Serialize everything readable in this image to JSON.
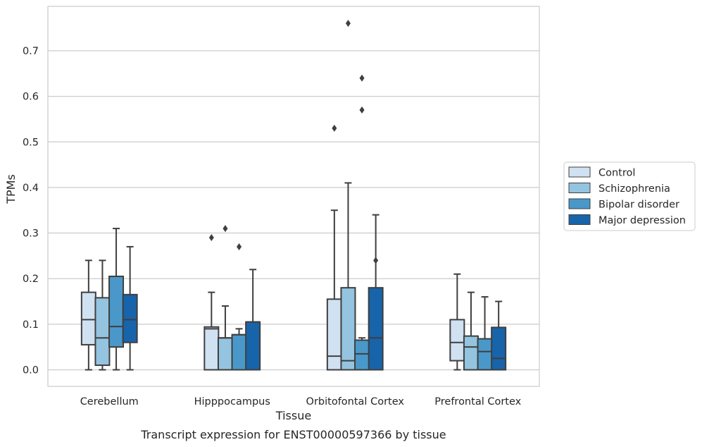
{
  "chart_data": {
    "type": "boxplot",
    "title": "Transcript expression for ENST00000597366 by tissue",
    "xlabel": "Tissue",
    "ylabel": "TPMs",
    "ylim": [
      -0.04,
      0.8
    ],
    "yticks": [
      "0.0",
      "0.1",
      "0.2",
      "0.3",
      "0.4",
      "0.5",
      "0.6",
      "0.7"
    ],
    "grid": "horizontal",
    "legend_position": "right",
    "categories": [
      "Cerebellum",
      "Hipppocampus",
      "Orbitofontal Cortex",
      "Prefrontal Cortex"
    ],
    "series": [
      {
        "name": "Control",
        "color": "#d0e1f2",
        "boxes": [
          {
            "whislo": 0.0,
            "q1": 0.055,
            "med": 0.11,
            "q3": 0.17,
            "whishi": 0.24,
            "fliers": []
          },
          {
            "whislo": 0.0,
            "q1": 0.0,
            "med": 0.09,
            "q3": 0.094,
            "whishi": 0.17,
            "fliers": [
              0.29
            ]
          },
          {
            "whislo": 0.0,
            "q1": 0.0,
            "med": 0.03,
            "q3": 0.155,
            "whishi": 0.35,
            "fliers": [
              0.53
            ]
          },
          {
            "whislo": 0.0,
            "q1": 0.02,
            "med": 0.06,
            "q3": 0.11,
            "whishi": 0.21,
            "fliers": []
          }
        ]
      },
      {
        "name": "Schizophrenia",
        "color": "#94c4df",
        "boxes": [
          {
            "whislo": 0.0,
            "q1": 0.01,
            "med": 0.07,
            "q3": 0.158,
            "whishi": 0.24,
            "fliers": []
          },
          {
            "whislo": 0.0,
            "q1": 0.0,
            "med": 0.07,
            "q3": 0.07,
            "whishi": 0.14,
            "fliers": [
              0.31
            ]
          },
          {
            "whislo": 0.0,
            "q1": 0.0,
            "med": 0.02,
            "q3": 0.18,
            "whishi": 0.41,
            "fliers": [
              0.76
            ]
          },
          {
            "whislo": 0.0,
            "q1": 0.0,
            "med": 0.05,
            "q3": 0.074,
            "whishi": 0.17,
            "fliers": []
          }
        ]
      },
      {
        "name": "Bipolar disorder",
        "color": "#4a98c9",
        "boxes": [
          {
            "whislo": 0.0,
            "q1": 0.05,
            "med": 0.095,
            "q3": 0.205,
            "whishi": 0.31,
            "fliers": []
          },
          {
            "whislo": 0.0,
            "q1": 0.0,
            "med": 0.077,
            "q3": 0.077,
            "whishi": 0.09,
            "fliers": [
              0.27
            ]
          },
          {
            "whislo": 0.0,
            "q1": 0.0,
            "med": 0.035,
            "q3": 0.065,
            "whishi": 0.07,
            "fliers": [
              0.57,
              0.64
            ]
          },
          {
            "whislo": 0.0,
            "q1": 0.0,
            "med": 0.04,
            "q3": 0.068,
            "whishi": 0.16,
            "fliers": []
          }
        ]
      },
      {
        "name": "Major depression",
        "color": "#1764ab",
        "boxes": [
          {
            "whislo": 0.0,
            "q1": 0.06,
            "med": 0.11,
            "q3": 0.165,
            "whishi": 0.27,
            "fliers": []
          },
          {
            "whislo": 0.0,
            "q1": 0.0,
            "med": 0.105,
            "q3": 0.105,
            "whishi": 0.22,
            "fliers": []
          },
          {
            "whislo": 0.0,
            "q1": 0.0,
            "med": 0.07,
            "q3": 0.18,
            "whishi": 0.34,
            "fliers": [
              0.24
            ]
          },
          {
            "whislo": 0.0,
            "q1": 0.0,
            "med": 0.025,
            "q3": 0.093,
            "whishi": 0.15,
            "fliers": []
          }
        ]
      }
    ]
  }
}
